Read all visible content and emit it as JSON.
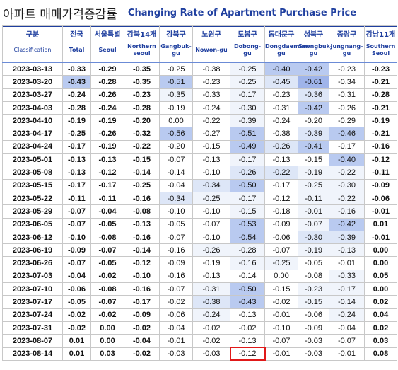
{
  "title": {
    "korean": "아파트 매매가격증감률",
    "english": "Changing Rate of Apartment Purchase Price"
  },
  "columns": [
    {
      "ko": "구분",
      "en": "Classification"
    },
    {
      "ko": "전국",
      "en": "Total"
    },
    {
      "ko": "서울특별",
      "en": "Seoul"
    },
    {
      "ko": "강북14개",
      "en": "Northern seoul"
    },
    {
      "ko": "강북구",
      "en": "Gangbuk-gu"
    },
    {
      "ko": "노원구",
      "en": "Nowon-gu"
    },
    {
      "ko": "도봉구",
      "en": "Dobong-gu"
    },
    {
      "ko": "동대문구",
      "en": "Dongdaemun-gu"
    },
    {
      "ko": "성북구",
      "en": "Seongbuk-gu"
    },
    {
      "ko": "중랑구",
      "en": "Jungnang-gu"
    },
    {
      "ko": "강남11개",
      "en": "Southern Seoul"
    }
  ],
  "rows": [
    {
      "date": "2023-03-13",
      "values": [
        "-0.33",
        "-0.29",
        "-0.35",
        "-0.25",
        "-0.38",
        "-0.25",
        "-0.40",
        "-0.42",
        "-0.23",
        "-0.23"
      ]
    },
    {
      "date": "2023-03-20",
      "values": [
        "-0.43",
        "-0.28",
        "-0.35",
        "-0.51",
        "-0.23",
        "-0.25",
        "-0.45",
        "-0.61",
        "-0.34",
        "-0.21"
      ]
    },
    {
      "date": "2023-03-27",
      "values": [
        "-0.24",
        "-0.26",
        "-0.23",
        "-0.35",
        "-0.33",
        "-0.17",
        "-0.23",
        "-0.36",
        "-0.31",
        "-0.28"
      ]
    },
    {
      "date": "2023-04-03",
      "values": [
        "-0.28",
        "-0.24",
        "-0.28",
        "-0.19",
        "-0.24",
        "-0.30",
        "-0.31",
        "-0.42",
        "-0.26",
        "-0.21"
      ]
    },
    {
      "date": "2023-04-10",
      "values": [
        "-0.19",
        "-0.19",
        "-0.20",
        "0.00",
        "-0.22",
        "-0.39",
        "-0.24",
        "-0.20",
        "-0.29",
        "-0.19"
      ]
    },
    {
      "date": "2023-04-17",
      "values": [
        "-0.25",
        "-0.26",
        "-0.32",
        "-0.56",
        "-0.27",
        "-0.51",
        "-0.38",
        "-0.39",
        "-0.46",
        "-0.21"
      ]
    },
    {
      "date": "2023-04-24",
      "values": [
        "-0.17",
        "-0.19",
        "-0.22",
        "-0.20",
        "-0.15",
        "-0.49",
        "-0.26",
        "-0.41",
        "-0.17",
        "-0.16"
      ]
    },
    {
      "date": "2023-05-01",
      "values": [
        "-0.13",
        "-0.13",
        "-0.15",
        "-0.07",
        "-0.13",
        "-0.17",
        "-0.13",
        "-0.15",
        "-0.40",
        "-0.12"
      ]
    },
    {
      "date": "2023-05-08",
      "values": [
        "-0.13",
        "-0.12",
        "-0.14",
        "-0.14",
        "-0.10",
        "-0.26",
        "-0.22",
        "-0.19",
        "-0.22",
        "-0.11"
      ]
    },
    {
      "date": "2023-05-15",
      "values": [
        "-0.17",
        "-0.17",
        "-0.25",
        "-0.04",
        "-0.34",
        "-0.50",
        "-0.17",
        "-0.25",
        "-0.30",
        "-0.09"
      ]
    },
    {
      "date": "2023-05-22",
      "values": [
        "-0.11",
        "-0.11",
        "-0.16",
        "-0.34",
        "-0.25",
        "-0.17",
        "-0.12",
        "-0.11",
        "-0.22",
        "-0.06"
      ]
    },
    {
      "date": "2023-05-29",
      "values": [
        "-0.07",
        "-0.04",
        "-0.08",
        "-0.10",
        "-0.10",
        "-0.15",
        "-0.18",
        "-0.01",
        "-0.16",
        "-0.01"
      ]
    },
    {
      "date": "2023-06-05",
      "values": [
        "-0.07",
        "-0.05",
        "-0.13",
        "-0.05",
        "-0.07",
        "-0.53",
        "-0.09",
        "-0.07",
        "-0.42",
        "0.01"
      ]
    },
    {
      "date": "2023-06-12",
      "values": [
        "-0.10",
        "-0.08",
        "-0.16",
        "-0.07",
        "-0.10",
        "-0.54",
        "-0.06",
        "-0.30",
        "-0.39",
        "-0.01"
      ]
    },
    {
      "date": "2023-06-19",
      "values": [
        "-0.09",
        "-0.07",
        "-0.14",
        "-0.16",
        "-0.26",
        "-0.28",
        "-0.07",
        "-0.19",
        "-0.13",
        "0.00"
      ]
    },
    {
      "date": "2023-06-26",
      "values": [
        "-0.07",
        "-0.05",
        "-0.12",
        "-0.09",
        "-0.19",
        "-0.16",
        "-0.25",
        "-0.05",
        "-0.01",
        "0.00"
      ]
    },
    {
      "date": "2023-07-03",
      "values": [
        "-0.04",
        "-0.02",
        "-0.10",
        "-0.16",
        "-0.13",
        "-0.14",
        "0.00",
        "-0.08",
        "-0.33",
        "0.05"
      ]
    },
    {
      "date": "2023-07-10",
      "values": [
        "-0.06",
        "-0.08",
        "-0.16",
        "-0.07",
        "-0.31",
        "-0.50",
        "-0.15",
        "-0.23",
        "-0.17",
        "0.00"
      ]
    },
    {
      "date": "2023-07-17",
      "values": [
        "-0.05",
        "-0.07",
        "-0.17",
        "-0.02",
        "-0.38",
        "-0.43",
        "-0.02",
        "-0.15",
        "-0.14",
        "0.02"
      ]
    },
    {
      "date": "2023-07-24",
      "values": [
        "-0.02",
        "-0.02",
        "-0.09",
        "-0.06",
        "-0.24",
        "-0.13",
        "-0.01",
        "-0.06",
        "-0.24",
        "0.04"
      ]
    },
    {
      "date": "2023-07-31",
      "values": [
        "-0.02",
        "0.00",
        "-0.02",
        "-0.04",
        "-0.02",
        "-0.02",
        "-0.10",
        "-0.09",
        "-0.04",
        "0.02"
      ]
    },
    {
      "date": "2023-08-07",
      "values": [
        "0.01",
        "0.00",
        "-0.04",
        "-0.01",
        "-0.02",
        "-0.13",
        "-0.07",
        "-0.03",
        "-0.07",
        "0.03"
      ]
    },
    {
      "date": "2023-08-14",
      "values": [
        "0.01",
        "0.03",
        "-0.02",
        "-0.03",
        "-0.03",
        "-0.12",
        "-0.01",
        "-0.03",
        "-0.01",
        "0.08"
      ]
    }
  ],
  "shading": [
    [
      0,
      0,
      0,
      0,
      0,
      1,
      3,
      3,
      0,
      0
    ],
    [
      3,
      0,
      0,
      3,
      0,
      1,
      2,
      4,
      0,
      0
    ],
    [
      0,
      0,
      0,
      1,
      0,
      1,
      0,
      2,
      0,
      0
    ],
    [
      0,
      0,
      0,
      0,
      0,
      1,
      0,
      3,
      0,
      0
    ],
    [
      0,
      0,
      0,
      0,
      0,
      1,
      0,
      0,
      0,
      0
    ],
    [
      0,
      0,
      0,
      3,
      0,
      3,
      0,
      2,
      3,
      0
    ],
    [
      0,
      0,
      0,
      0,
      0,
      3,
      2,
      3,
      0,
      0
    ],
    [
      0,
      0,
      0,
      0,
      0,
      1,
      0,
      0,
      3,
      0
    ],
    [
      0,
      0,
      0,
      0,
      0,
      2,
      2,
      1,
      1,
      0
    ],
    [
      0,
      0,
      0,
      0,
      2,
      3,
      0,
      1,
      1,
      0
    ],
    [
      0,
      0,
      0,
      2,
      1,
      1,
      0,
      1,
      1,
      0
    ],
    [
      0,
      0,
      0,
      0,
      0,
      1,
      0,
      1,
      1,
      0
    ],
    [
      0,
      0,
      0,
      0,
      0,
      3,
      0,
      1,
      3,
      0
    ],
    [
      0,
      0,
      0,
      0,
      0,
      3,
      0,
      2,
      2,
      0
    ],
    [
      0,
      0,
      0,
      0,
      1,
      1,
      0,
      1,
      1,
      0
    ],
    [
      0,
      0,
      0,
      0,
      0,
      1,
      1,
      0,
      0,
      0
    ],
    [
      0,
      0,
      0,
      0,
      0,
      0,
      0,
      0,
      1,
      0
    ],
    [
      0,
      0,
      0,
      0,
      1,
      3,
      0,
      1,
      1,
      0
    ],
    [
      0,
      0,
      0,
      0,
      2,
      3,
      0,
      1,
      1,
      0
    ],
    [
      0,
      0,
      0,
      0,
      1,
      0,
      0,
      0,
      1,
      0
    ],
    [
      0,
      0,
      0,
      0,
      0,
      0,
      0,
      0,
      0,
      0
    ],
    [
      0,
      0,
      0,
      0,
      0,
      0,
      0,
      0,
      0,
      0
    ],
    [
      0,
      0,
      0,
      0,
      0,
      0,
      0,
      0,
      0,
      0
    ]
  ],
  "highlighted_cell": {
    "row_date": "2023-08-14",
    "column": "도봉구",
    "value": "-0.12"
  },
  "colors": {
    "header_text": "#1f3f9f",
    "highlight_border": "#e01919",
    "shade_dark": "#9fb4ea",
    "shade_mid": "#b9caf0",
    "shade_light": "#dde6f7"
  }
}
